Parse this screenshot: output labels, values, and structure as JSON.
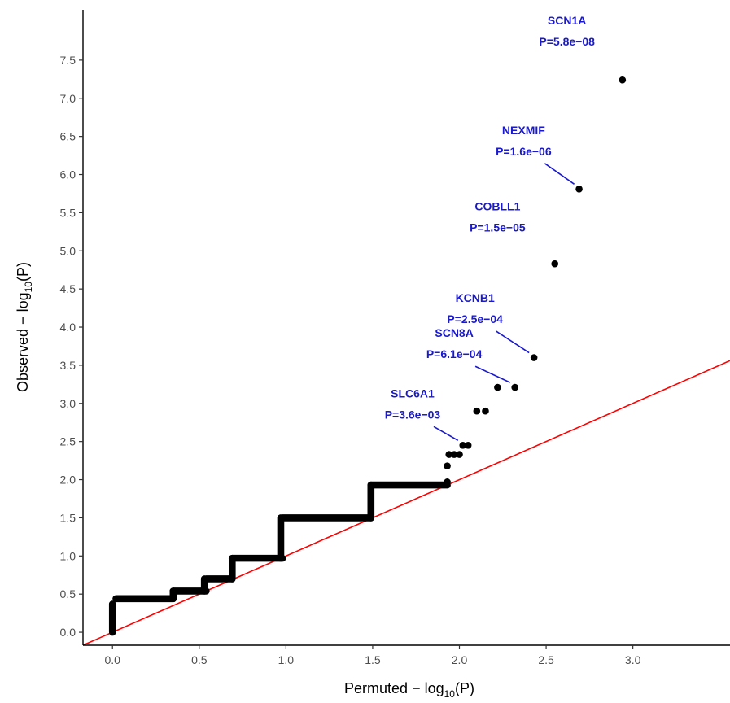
{
  "chart_data": {
    "type": "scatter",
    "title": "",
    "xlabel": "Permuted",
    "ylabel": "Observed",
    "axis_label_math": {
      "prefix": "− log",
      "subscript": "10",
      "suffix": "(P)"
    },
    "xlim": [
      -0.17,
      3.56
    ],
    "ylim": [
      -0.17,
      8.16
    ],
    "x_ticks": [
      "0.0",
      "0.5",
      "1.0",
      "1.5",
      "2.0",
      "2.5",
      "3.0"
    ],
    "y_ticks": [
      "0.0",
      "0.5",
      "1.0",
      "1.5",
      "2.0",
      "2.5",
      "3.0",
      "3.5",
      "4.0",
      "4.5",
      "5.0",
      "5.5",
      "6.0",
      "6.5",
      "7.0",
      "7.5"
    ],
    "grid": false,
    "reference_line": {
      "slope": 1,
      "intercept": 0,
      "color": "#ff0000"
    },
    "point_color": "#000000",
    "label_color": "#1a1acc",
    "step_segments": [
      {
        "x_start": 0.02,
        "x_end": 0.35,
        "y": 0.44
      },
      {
        "x_start": 0.35,
        "x_end": 0.54,
        "y": 0.54
      },
      {
        "x_start": 0.54,
        "x_end": 0.69,
        "y": 0.7
      },
      {
        "x_start": 0.69,
        "x_end": 0.98,
        "y": 0.97
      },
      {
        "x_start": 0.98,
        "x_end": 1.49,
        "y": 1.5
      },
      {
        "x_start": 1.49,
        "x_end": 1.93,
        "y": 1.93
      }
    ],
    "step_risers": [
      {
        "x": 0.0,
        "y_start": 0.0,
        "y_end": 0.37
      },
      {
        "x": 0.35,
        "y_start": 0.44,
        "y_end": 0.54
      },
      {
        "x": 0.53,
        "y_start": 0.54,
        "y_end": 0.7
      },
      {
        "x": 0.69,
        "y_start": 0.7,
        "y_end": 0.97
      },
      {
        "x": 0.97,
        "y_start": 0.97,
        "y_end": 1.5
      },
      {
        "x": 1.49,
        "y_start": 1.5,
        "y_end": 1.93
      }
    ],
    "points": [
      {
        "x": 1.93,
        "y": 1.97
      },
      {
        "x": 1.93,
        "y": 2.18
      },
      {
        "x": 1.94,
        "y": 2.33
      },
      {
        "x": 1.97,
        "y": 2.33
      },
      {
        "x": 2.0,
        "y": 2.33
      },
      {
        "x": 2.02,
        "y": 2.45
      },
      {
        "x": 2.05,
        "y": 2.45
      },
      {
        "x": 2.1,
        "y": 2.9
      },
      {
        "x": 2.15,
        "y": 2.9
      },
      {
        "x": 2.22,
        "y": 3.21
      },
      {
        "x": 2.32,
        "y": 3.21
      },
      {
        "x": 2.43,
        "y": 3.6
      },
      {
        "x": 2.55,
        "y": 4.83
      },
      {
        "x": 2.69,
        "y": 5.81
      },
      {
        "x": 2.94,
        "y": 7.24
      }
    ],
    "annotations": [
      {
        "gene": "SCN1A",
        "p": "P=5.8e−08",
        "x": 2.94,
        "y": 7.24,
        "lx": 2.62,
        "ly": 7.97,
        "line": false
      },
      {
        "gene": "NEXMIF",
        "p": "P=1.6e−06",
        "x": 2.69,
        "y": 5.81,
        "lx": 2.37,
        "ly": 6.53,
        "line": true
      },
      {
        "gene": "COBLL1",
        "p": "P=1.5e−05",
        "x": 2.55,
        "y": 4.83,
        "lx": 2.22,
        "ly": 5.53,
        "line": false
      },
      {
        "gene": "KCNB1",
        "p": "P=2.5e−04",
        "x": 2.43,
        "y": 3.6,
        "lx": 2.09,
        "ly": 4.33,
        "line": true
      },
      {
        "gene": "SCN8A",
        "p": "P=6.1e−04",
        "x": 2.32,
        "y": 3.21,
        "lx": 1.97,
        "ly": 3.87,
        "line": true
      },
      {
        "gene": "SLC6A1",
        "p": "P=3.6e−03",
        "x": 2.02,
        "y": 2.45,
        "lx": 1.73,
        "ly": 3.08,
        "line": true
      }
    ]
  }
}
